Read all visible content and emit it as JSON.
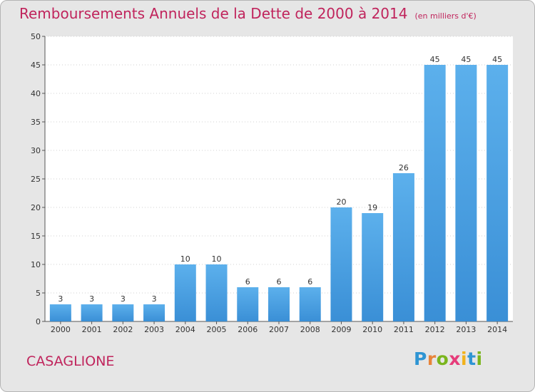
{
  "chart_data": {
    "type": "bar",
    "title": "Remboursements Annuels de la Dette de 2000 à 2014",
    "unit": "(en milliers d'€)",
    "categories": [
      "2000",
      "2001",
      "2002",
      "2003",
      "2004",
      "2005",
      "2006",
      "2007",
      "2008",
      "2009",
      "2010",
      "2011",
      "2012",
      "2013",
      "2014"
    ],
    "values": [
      3,
      3,
      3,
      3,
      10,
      10,
      6,
      6,
      6,
      20,
      19,
      26,
      45,
      45,
      45
    ],
    "ylim": [
      0,
      50
    ],
    "yticks": [
      0,
      5,
      10,
      15,
      20,
      25,
      30,
      35,
      40,
      45,
      50
    ],
    "grid": true,
    "bar_color": "#3a8fd6"
  },
  "location": "CASAGLIONE",
  "logo": "Proxiti"
}
